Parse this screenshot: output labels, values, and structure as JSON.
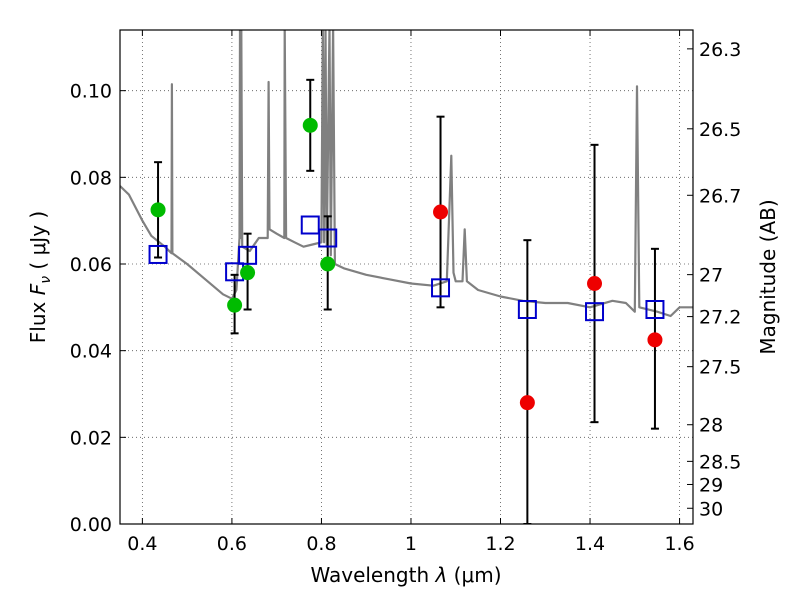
{
  "chart_data": {
    "type": "scatter",
    "xlabel_prefix": "Wavelength  ",
    "xlabel_symbol": "λ",
    "xlabel_unit": " (μm)",
    "ylabel_prefix": "Flux  ",
    "ylabel_symbol_F": "F",
    "ylabel_symbol_sub": "ν",
    "ylabel_unit": " ( μJy )",
    "y2label": "Magnitude (AB)",
    "xlim": [
      0.35,
      1.63
    ],
    "ylim": [
      0.0,
      0.114
    ],
    "grid": true,
    "x_ticks": [
      0.4,
      0.6,
      0.8,
      1.0,
      1.2,
      1.4,
      1.6
    ],
    "x_tick_labels": [
      "0.4",
      "0.6",
      "0.8",
      "1",
      "1.2",
      "1.4",
      "1.6"
    ],
    "y_ticks": [
      0.0,
      0.02,
      0.04,
      0.06,
      0.08,
      0.1
    ],
    "y_tick_labels": [
      "0.00",
      "0.02",
      "0.04",
      "0.06",
      "0.08",
      "0.10"
    ],
    "mag_ticks": [
      26.3,
      26.5,
      26.7,
      27,
      27.2,
      27.5,
      28,
      28.5,
      29,
      30
    ],
    "mag_tick_labels": [
      "26.3",
      "26.5",
      "26.7",
      "27",
      "27.2",
      "27.5",
      "28",
      "28.5",
      "29",
      "30"
    ],
    "colors": {
      "spectrum": "#808080",
      "green": "#00bb00",
      "red": "#ee0000",
      "model": "#0000cc",
      "errorbar": "#000000"
    },
    "series": [
      {
        "marker": "green-circle",
        "points": [
          {
            "x": 0.435,
            "y": 0.0725,
            "ylo": 0.0615,
            "yhi": 0.0835
          },
          {
            "x": 0.606,
            "y": 0.0505,
            "ylo": 0.044,
            "yhi": 0.0575
          },
          {
            "x": 0.635,
            "y": 0.058,
            "ylo": 0.0495,
            "yhi": 0.067
          },
          {
            "x": 0.775,
            "y": 0.092,
            "ylo": 0.0815,
            "yhi": 0.1025
          },
          {
            "x": 0.814,
            "y": 0.06,
            "ylo": 0.0495,
            "yhi": 0.071
          }
        ]
      },
      {
        "marker": "red-circle",
        "points": [
          {
            "x": 1.066,
            "y": 0.072,
            "ylo": 0.05,
            "yhi": 0.094
          },
          {
            "x": 1.26,
            "y": 0.028,
            "ylo": 0.0,
            "yhi": 0.0655
          },
          {
            "x": 1.41,
            "y": 0.0555,
            "ylo": 0.0235,
            "yhi": 0.0875
          },
          {
            "x": 1.545,
            "y": 0.0425,
            "ylo": 0.022,
            "yhi": 0.0635
          }
        ]
      },
      {
        "marker": "blue-open-square",
        "points": [
          {
            "x": 0.435,
            "y": 0.0622
          },
          {
            "x": 0.606,
            "y": 0.0582
          },
          {
            "x": 0.635,
            "y": 0.062
          },
          {
            "x": 0.775,
            "y": 0.069
          },
          {
            "x": 0.814,
            "y": 0.066
          },
          {
            "x": 1.066,
            "y": 0.0545
          },
          {
            "x": 1.26,
            "y": 0.0495
          },
          {
            "x": 1.41,
            "y": 0.049
          },
          {
            "x": 1.545,
            "y": 0.0495
          }
        ]
      },
      {
        "marker": "gray-line",
        "points": [
          [
            0.35,
            0.078
          ],
          [
            0.37,
            0.076
          ],
          [
            0.4,
            0.07
          ],
          [
            0.42,
            0.0665
          ],
          [
            0.45,
            0.064
          ],
          [
            0.465,
            0.0625
          ],
          [
            0.466,
            0.1015
          ],
          [
            0.467,
            0.0625
          ],
          [
            0.48,
            0.0615
          ],
          [
            0.5,
            0.06
          ],
          [
            0.54,
            0.0565
          ],
          [
            0.58,
            0.053
          ],
          [
            0.6,
            0.052
          ],
          [
            0.61,
            0.054
          ],
          [
            0.617,
            0.066
          ],
          [
            0.618,
            0.115
          ],
          [
            0.619,
            0.066
          ],
          [
            0.621,
            0.115
          ],
          [
            0.623,
            0.064
          ],
          [
            0.64,
            0.063
          ],
          [
            0.66,
            0.066
          ],
          [
            0.68,
            0.066
          ],
          [
            0.682,
            0.102
          ],
          [
            0.684,
            0.068
          ],
          [
            0.7,
            0.067
          ],
          [
            0.717,
            0.066
          ],
          [
            0.718,
            0.115
          ],
          [
            0.721,
            0.066
          ],
          [
            0.74,
            0.065
          ],
          [
            0.76,
            0.064
          ],
          [
            0.78,
            0.0645
          ],
          [
            0.8,
            0.065
          ],
          [
            0.803,
            0.115
          ],
          [
            0.806,
            0.065
          ],
          [
            0.809,
            0.115
          ],
          [
            0.812,
            0.064
          ],
          [
            0.818,
            0.115
          ],
          [
            0.821,
            0.062
          ],
          [
            0.826,
            0.115
          ],
          [
            0.83,
            0.06
          ],
          [
            0.85,
            0.059
          ],
          [
            0.9,
            0.0575
          ],
          [
            0.95,
            0.0565
          ],
          [
            1.0,
            0.0555
          ],
          [
            1.05,
            0.055
          ],
          [
            1.08,
            0.056
          ],
          [
            1.09,
            0.085
          ],
          [
            1.095,
            0.058
          ],
          [
            1.1,
            0.056
          ],
          [
            1.115,
            0.056
          ],
          [
            1.12,
            0.068
          ],
          [
            1.125,
            0.056
          ],
          [
            1.15,
            0.054
          ],
          [
            1.2,
            0.0525
          ],
          [
            1.25,
            0.0515
          ],
          [
            1.3,
            0.051
          ],
          [
            1.35,
            0.051
          ],
          [
            1.4,
            0.05
          ],
          [
            1.45,
            0.0515
          ],
          [
            1.48,
            0.051
          ],
          [
            1.5,
            0.049
          ],
          [
            1.505,
            0.101
          ],
          [
            1.51,
            0.05
          ],
          [
            1.55,
            0.049
          ],
          [
            1.58,
            0.048
          ],
          [
            1.6,
            0.05
          ],
          [
            1.63,
            0.05
          ]
        ]
      }
    ]
  }
}
